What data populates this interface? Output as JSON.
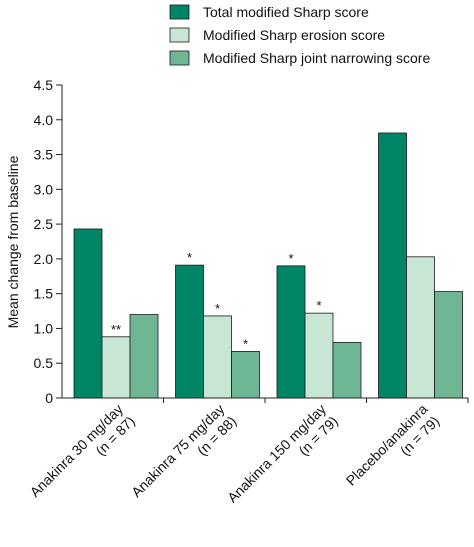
{
  "chart_data": {
    "type": "bar",
    "ylabel": "Mean change from baseline",
    "ylim": [
      0,
      4.5
    ],
    "yticks": [
      "0",
      "0.5",
      "1.0",
      "1.5",
      "2.0",
      "2.5",
      "3.0",
      "3.5",
      "4.0",
      "4.5"
    ],
    "categories": [
      [
        "Anakinra 30 mg/day",
        "(n = 87)"
      ],
      [
        "Anakinra 75 mg/day",
        "(n = 88)"
      ],
      [
        "Anakinra 150 mg/day",
        "(n = 79)"
      ],
      [
        "Placebo/anakinra",
        "(n = 79)"
      ]
    ],
    "series": [
      {
        "name": "Total modified Sharp score",
        "color": "#008566",
        "values": [
          2.43,
          1.91,
          1.9,
          3.81
        ],
        "annotations": [
          "",
          "*",
          "*",
          ""
        ]
      },
      {
        "name": "Modified Sharp erosion score",
        "color": "#c7e6d4",
        "values": [
          0.88,
          1.18,
          1.22,
          2.03
        ],
        "annotations": [
          "**",
          "*",
          "*",
          ""
        ]
      },
      {
        "name": "Modified Sharp joint narrowing score",
        "color": "#6fb695",
        "values": [
          1.2,
          0.67,
          0.8,
          1.53
        ],
        "annotations": [
          "",
          "*",
          "",
          ""
        ]
      }
    ],
    "legend_position": "top-right",
    "grid": false
  }
}
